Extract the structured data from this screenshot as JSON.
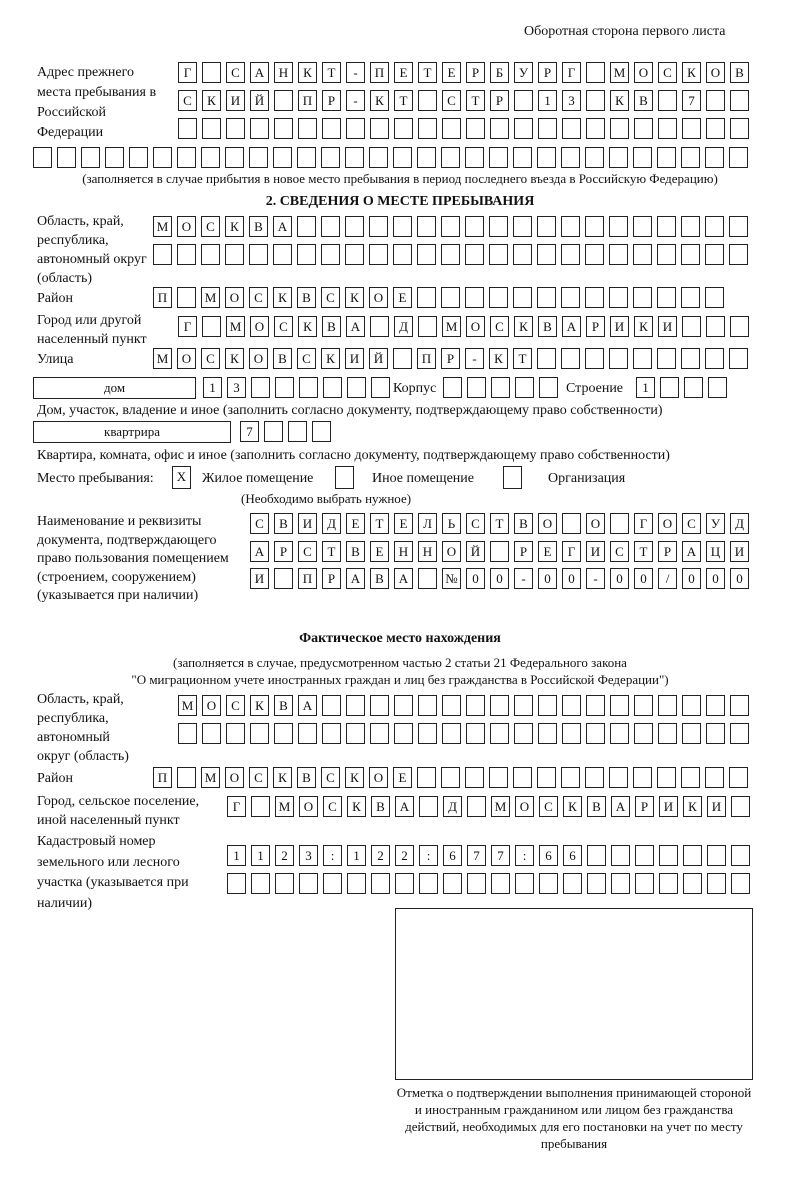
{
  "header": "Оборотная сторона первого листа",
  "prev_address": {
    "label": "Адрес прежнего места пребывания в Российской Федерации",
    "rows": [
      [
        "Г",
        " ",
        "С",
        "А",
        "Н",
        "К",
        "Т",
        "-",
        "П",
        "Е",
        "Т",
        "Е",
        "Р",
        "Б",
        "У",
        "Р",
        "Г",
        " ",
        "М",
        "О",
        "С",
        "К",
        "О",
        "В"
      ],
      [
        "С",
        "К",
        "И",
        "Й",
        " ",
        "П",
        "Р",
        "-",
        "К",
        "Т",
        " ",
        "С",
        "Т",
        "Р",
        " ",
        "1",
        "3",
        " ",
        "К",
        "В",
        " ",
        "7",
        " ",
        " "
      ],
      [
        " ",
        " ",
        " ",
        " ",
        " ",
        " ",
        " ",
        " ",
        " ",
        " ",
        " ",
        " ",
        " ",
        " ",
        " ",
        " ",
        " ",
        " ",
        " ",
        " ",
        " ",
        " ",
        " ",
        " "
      ],
      [
        " ",
        " ",
        " ",
        " ",
        " ",
        " ",
        " ",
        " ",
        " ",
        " ",
        " ",
        " ",
        " ",
        " ",
        " ",
        " ",
        " ",
        " ",
        " ",
        " ",
        " ",
        " ",
        " ",
        " ",
        " ",
        " ",
        " ",
        " ",
        " ",
        " "
      ]
    ],
    "note": "(заполняется в случае прибытия в новое место пребывания в период последнего въезда в Российскую Федерацию)"
  },
  "section2": {
    "title": "2. СВЕДЕНИЯ О МЕСТЕ ПРЕБЫВАНИЯ",
    "region_label": "Область, край, республика, автономный округ (область)",
    "region_rows": [
      [
        "М",
        "О",
        "С",
        "К",
        "В",
        "А",
        " ",
        " ",
        " ",
        " ",
        " ",
        " ",
        " ",
        " ",
        " ",
        " ",
        " ",
        " ",
        " ",
        " ",
        " ",
        " ",
        " ",
        " ",
        " "
      ],
      [
        " ",
        " ",
        " ",
        " ",
        " ",
        " ",
        " ",
        " ",
        " ",
        " ",
        " ",
        " ",
        " ",
        " ",
        " ",
        " ",
        " ",
        " ",
        " ",
        " ",
        " ",
        " ",
        " ",
        " ",
        " "
      ]
    ],
    "district_label": "Район",
    "district": [
      "П",
      " ",
      "М",
      "О",
      "С",
      "К",
      "В",
      "С",
      "К",
      "О",
      "Е",
      " ",
      " ",
      " ",
      " ",
      " ",
      " ",
      " ",
      " ",
      " ",
      " ",
      " ",
      " ",
      " "
    ],
    "city_label": "Город или другой населенный пункт",
    "city": [
      "Г",
      " ",
      "М",
      "О",
      "С",
      "К",
      "В",
      "А",
      " ",
      "Д",
      " ",
      "М",
      "О",
      "С",
      "К",
      "В",
      "А",
      "Р",
      "И",
      "К",
      "И",
      " ",
      " ",
      " "
    ],
    "street_label": "Улица",
    "street": [
      "М",
      "О",
      "С",
      "К",
      "О",
      "В",
      "С",
      "К",
      "И",
      "Й",
      " ",
      "П",
      "Р",
      "-",
      "К",
      "Т",
      " ",
      " ",
      " ",
      " ",
      " ",
      " ",
      " ",
      " ",
      " "
    ],
    "house_type": "дом",
    "house": [
      "1",
      "3",
      " ",
      " ",
      " ",
      " ",
      " ",
      " "
    ],
    "building_label": "Корпус",
    "building": [
      " ",
      " ",
      " ",
      " ",
      " "
    ],
    "structure_label": "Строение",
    "structure": [
      "1",
      " ",
      " ",
      " "
    ],
    "house_note": "Дом, участок, владение и иное (заполнить согласно документу, подтверждающему право собственности)",
    "apt_type": "квартрира",
    "apt": [
      "7",
      " ",
      " ",
      " "
    ],
    "apt_note": "Квартира, комната, офис и иное (заполнить согласно документу, подтверждающему право собственности)",
    "stay_label": "Место пребывания:",
    "stay_options": [
      {
        "label": "Жилое помещение",
        "mark": "X"
      },
      {
        "label": "Иное помещение",
        "mark": ""
      },
      {
        "label": "Организация",
        "mark": ""
      }
    ],
    "stay_note": "(Необходимо выбрать нужное)",
    "doc_label": "Наименование и реквизиты документа, подтверждающего право пользования помещением (строением, сооружением) (указывается при наличии)",
    "doc_rows": [
      [
        "С",
        "В",
        "И",
        "Д",
        "Е",
        "Т",
        "Е",
        "Л",
        "Ь",
        "С",
        "Т",
        "В",
        "О",
        " ",
        "О",
        " ",
        "Г",
        "О",
        "С",
        "У",
        "Д"
      ],
      [
        "А",
        "Р",
        "С",
        "Т",
        "В",
        "Е",
        "Н",
        "Н",
        "О",
        "Й",
        " ",
        "Р",
        "Е",
        "Г",
        "И",
        "С",
        "Т",
        "Р",
        "А",
        "Ц",
        "И"
      ],
      [
        "И",
        " ",
        "П",
        "Р",
        "А",
        "В",
        "А",
        " ",
        "№",
        "0",
        "0",
        "-",
        "0",
        "0",
        "-",
        "0",
        "0",
        "/",
        "0",
        "0",
        "0"
      ]
    ]
  },
  "actual": {
    "title": "Фактическое место нахождения",
    "note1": "(заполняется в случае, предусмотренном частью 2 статьи 21 Федерального закона",
    "note2": "\"О миграционном учете иностранных граждан и лиц без гражданства в Российской Федерации\")",
    "region_label": "Область, край, республика, автономный округ (область)",
    "region_rows": [
      [
        "М",
        "О",
        "С",
        "К",
        "В",
        "А",
        " ",
        " ",
        " ",
        " ",
        " ",
        " ",
        " ",
        " ",
        " ",
        " ",
        " ",
        " ",
        " ",
        " ",
        " ",
        " ",
        " ",
        " "
      ],
      [
        " ",
        " ",
        " ",
        " ",
        " ",
        " ",
        " ",
        " ",
        " ",
        " ",
        " ",
        " ",
        " ",
        " ",
        " ",
        " ",
        " ",
        " ",
        " ",
        " ",
        " ",
        " ",
        " ",
        " "
      ]
    ],
    "district_label": "Район",
    "district": [
      "П",
      " ",
      "М",
      "О",
      "С",
      "К",
      "В",
      "С",
      "К",
      "О",
      "Е",
      " ",
      " ",
      " ",
      " ",
      " ",
      " ",
      " ",
      " ",
      " ",
      " ",
      " ",
      " ",
      " ",
      " "
    ],
    "city_label": "Город, сельское поселение, иной населенный пункт",
    "city": [
      "Г",
      " ",
      "М",
      "О",
      "С",
      "К",
      "В",
      "А",
      " ",
      "Д",
      " ",
      "М",
      "О",
      "С",
      "К",
      "В",
      "А",
      "Р",
      "И",
      "К",
      "И",
      " "
    ],
    "cadastre_label": "Кадастровый номер земельного или лесного участка (указывается при наличии)",
    "cadastre_rows": [
      [
        "1",
        "1",
        "2",
        "3",
        ":",
        "1",
        "2",
        "2",
        ":",
        "6",
        "7",
        "7",
        ":",
        "6",
        "6",
        " ",
        " ",
        " ",
        " ",
        " ",
        " ",
        " "
      ],
      [
        " ",
        " ",
        " ",
        " ",
        " ",
        " ",
        " ",
        " ",
        " ",
        " ",
        " ",
        " ",
        " ",
        " ",
        " ",
        " ",
        " ",
        " ",
        " ",
        " ",
        " ",
        " "
      ]
    ]
  },
  "stamp_caption": "Отметка о подтверждении выполнения принимающей стороной и иностранным гражданином или лицом без гражданства действий, необходимых для его постановки на учет по месту пребывания"
}
